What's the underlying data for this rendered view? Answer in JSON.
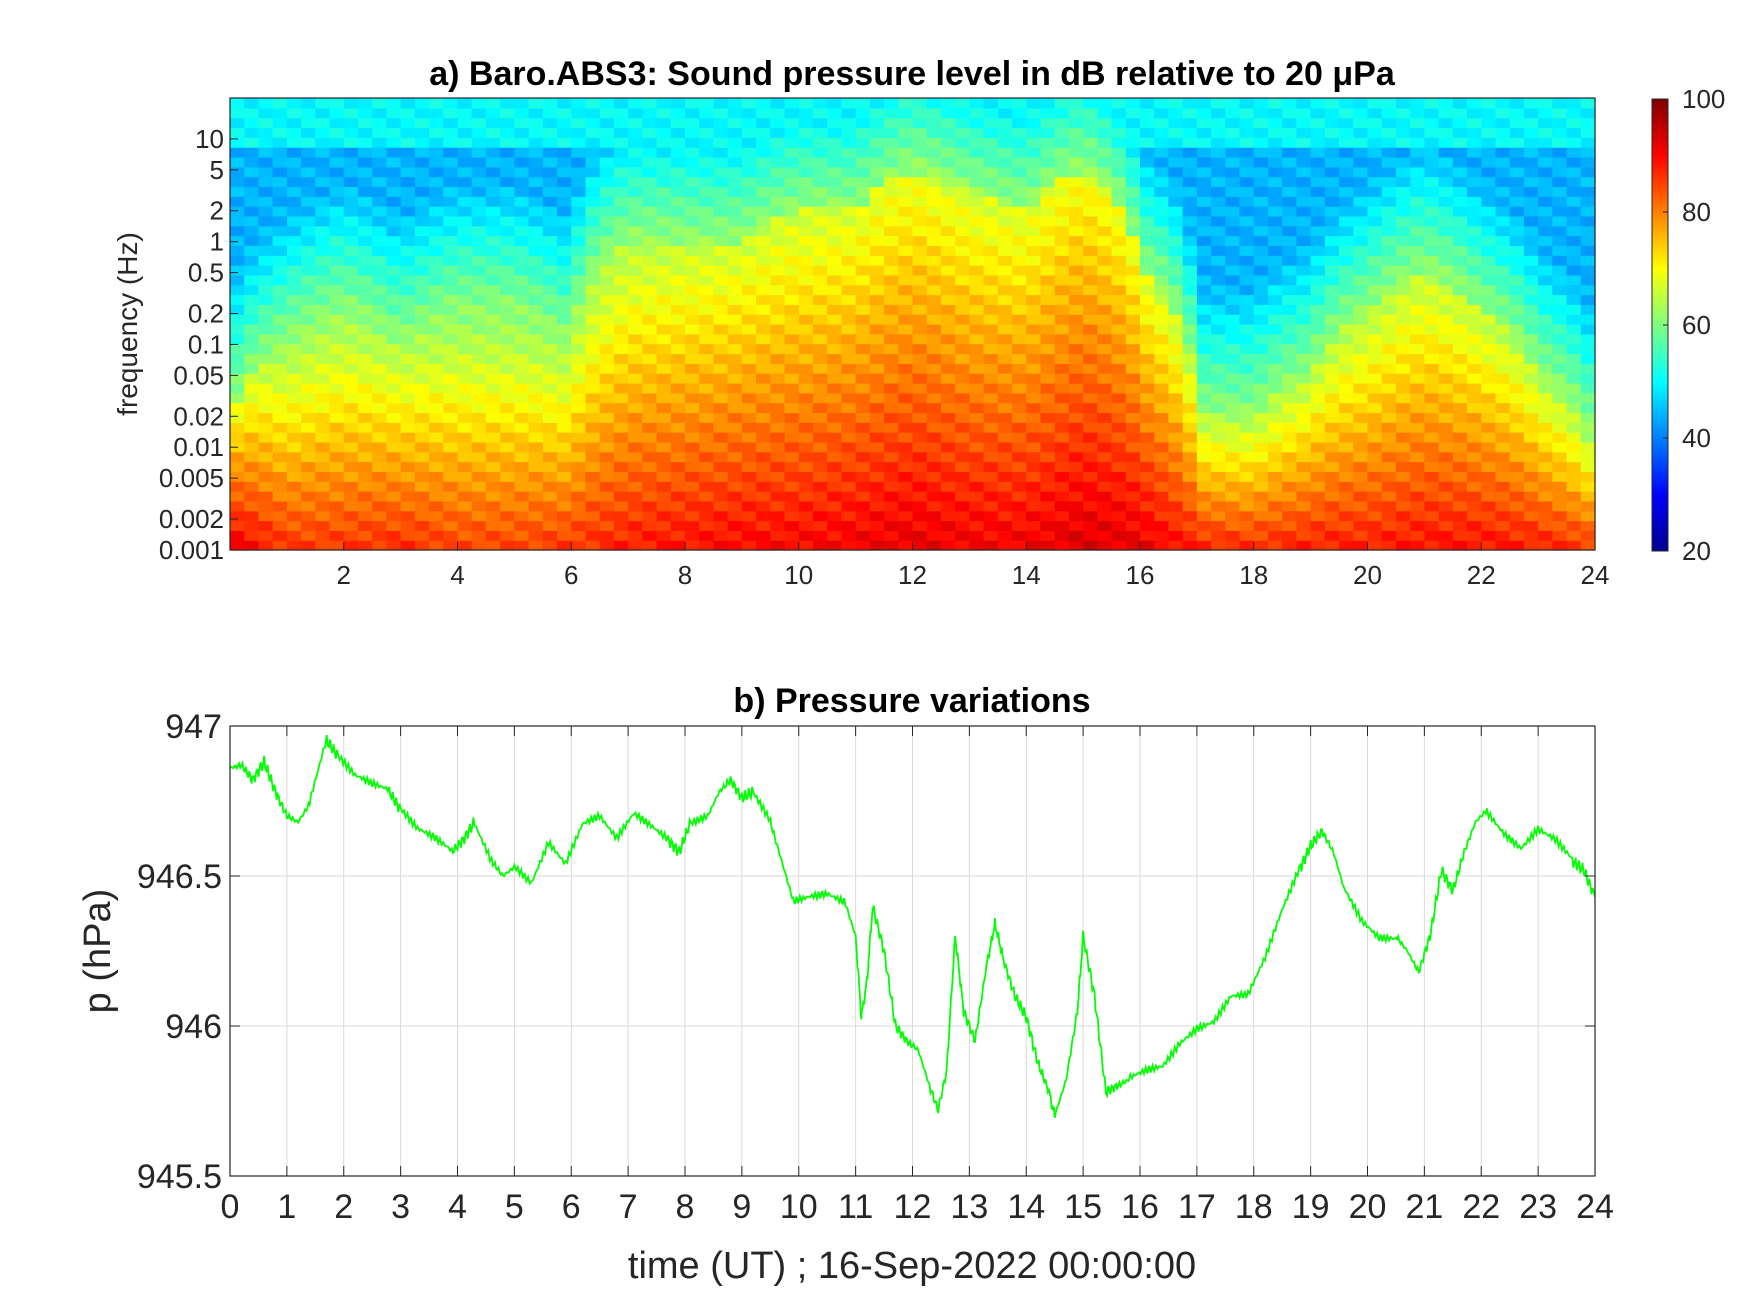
{
  "chart_data": [
    {
      "type": "heatmap",
      "title": "a) Baro.ABS3: Sound pressure level in dB relative to 20 μPa",
      "xlabel": "",
      "ylabel": "frequency (Hz)",
      "x_range": [
        0,
        24
      ],
      "x_ticks": [
        2,
        4,
        6,
        8,
        10,
        12,
        14,
        16,
        18,
        20,
        22,
        24
      ],
      "y_scale": "log",
      "y_range": [
        0.001,
        25
      ],
      "y_ticks": [
        0.001,
        0.002,
        0.005,
        0.01,
        0.02,
        0.05,
        0.1,
        0.2,
        0.5,
        1,
        2,
        5,
        10
      ],
      "y_tick_labels": [
        "0.001",
        "0.002",
        "0.005",
        "0.01",
        "0.02",
        "0.05",
        "0.1",
        "0.2",
        "0.5",
        "1",
        "2",
        "5",
        "10"
      ],
      "colorbar": {
        "range": [
          20,
          100
        ],
        "ticks": [
          20,
          40,
          60,
          80,
          100
        ],
        "colormap": "jet"
      },
      "level_profile_db_by_hour": {
        "hours": [
          0,
          1,
          2,
          3,
          4,
          5,
          6,
          7,
          8,
          9,
          10,
          11,
          12,
          13,
          14,
          15,
          16,
          17,
          18,
          19,
          20,
          21,
          22,
          23,
          24
        ],
        "lowfreq_db": [
          92,
          86,
          86,
          87,
          85,
          85,
          86,
          88,
          89,
          90,
          90,
          91,
          92,
          91,
          91,
          93,
          92,
          88,
          87,
          88,
          88,
          89,
          89,
          88,
          86
        ],
        "peak_top_freq_hz": [
          0.02,
          0.1,
          0.2,
          0.1,
          0.2,
          0.2,
          0.1,
          1,
          1,
          1,
          2,
          2,
          5,
          3,
          2,
          5,
          0.5,
          0.02,
          0.02,
          0.05,
          0.2,
          0.5,
          0.2,
          0.05,
          0.01
        ]
      },
      "grid": false,
      "legend": "none"
    },
    {
      "type": "line",
      "title": "b) Pressure variations",
      "xlabel": "time (UT) ; 16-Sep-2022 00:00:00",
      "ylabel": "p (hPa)",
      "xlim": [
        0,
        24
      ],
      "ylim": [
        945.5,
        947
      ],
      "x_ticks": [
        0,
        1,
        2,
        3,
        4,
        5,
        6,
        7,
        8,
        9,
        10,
        11,
        12,
        13,
        14,
        15,
        16,
        17,
        18,
        19,
        20,
        21,
        22,
        23,
        24
      ],
      "y_ticks": [
        945.5,
        946,
        946.5,
        947
      ],
      "y_tick_labels": [
        "945.5",
        "946",
        "946.5",
        "947"
      ],
      "grid": true,
      "legend": "none",
      "line_color": "#00ff00",
      "series": [
        {
          "x": [
            0,
            0.2,
            0.4,
            0.6,
            0.8,
            1.0,
            1.2,
            1.4,
            1.7,
            1.9,
            2.2,
            2.5,
            2.8,
            3.0,
            3.3,
            3.6,
            3.9,
            4.1,
            4.3,
            4.6,
            4.8,
            5.0,
            5.3,
            5.6,
            5.9,
            6.2,
            6.5,
            6.8,
            7.1,
            7.4,
            7.7,
            7.9,
            8.1,
            8.4,
            8.6,
            8.8,
            9.0,
            9.2,
            9.5,
            9.7,
            9.9,
            10.2,
            10.5,
            10.8,
            11.0,
            11.1,
            11.2,
            11.3,
            11.5,
            11.7,
            11.9,
            12.1,
            12.3,
            12.45,
            12.6,
            12.75,
            12.9,
            13.1,
            13.3,
            13.45,
            13.6,
            13.8,
            14.0,
            14.2,
            14.4,
            14.5,
            14.7,
            14.9,
            15.0,
            15.2,
            15.4,
            15.6,
            15.8,
            16.1,
            16.4,
            16.7,
            17.0,
            17.3,
            17.6,
            17.9,
            18.2,
            18.5,
            18.8,
            19.0,
            19.2,
            19.4,
            19.6,
            19.9,
            20.2,
            20.5,
            20.7,
            20.9,
            21.1,
            21.3,
            21.5,
            21.7,
            21.9,
            22.1,
            22.4,
            22.7,
            23.0,
            23.3,
            23.6,
            23.8,
            24.0
          ],
          "y": [
            946.86,
            946.87,
            946.82,
            946.88,
            946.78,
            946.7,
            946.68,
            946.74,
            946.95,
            946.9,
            946.83,
            946.8,
            946.78,
            946.72,
            946.65,
            946.62,
            946.58,
            946.62,
            946.68,
            946.55,
            946.5,
            946.53,
            946.48,
            946.62,
            946.55,
            946.68,
            946.7,
            946.62,
            946.7,
            946.66,
            946.62,
            946.58,
            946.68,
            946.7,
            946.78,
            946.82,
            946.76,
            946.78,
            946.68,
            946.55,
            946.42,
            946.44,
            946.45,
            946.42,
            946.3,
            946.03,
            946.15,
            946.4,
            946.25,
            946.0,
            945.95,
            945.92,
            945.8,
            945.72,
            945.85,
            946.3,
            946.05,
            945.95,
            946.2,
            946.34,
            946.22,
            946.1,
            946.03,
            945.88,
            945.78,
            945.7,
            945.82,
            946.05,
            946.3,
            946.1,
            945.78,
            945.8,
            945.82,
            945.85,
            945.87,
            945.95,
            946.0,
            946.02,
            946.1,
            946.1,
            946.22,
            946.38,
            946.52,
            946.6,
            946.65,
            946.58,
            946.45,
            946.35,
            946.3,
            946.3,
            946.25,
            946.18,
            946.3,
            946.52,
            946.45,
            946.58,
            946.68,
            946.72,
            946.65,
            946.6,
            946.66,
            946.62,
            946.55,
            946.52,
            946.43
          ]
        }
      ]
    }
  ]
}
